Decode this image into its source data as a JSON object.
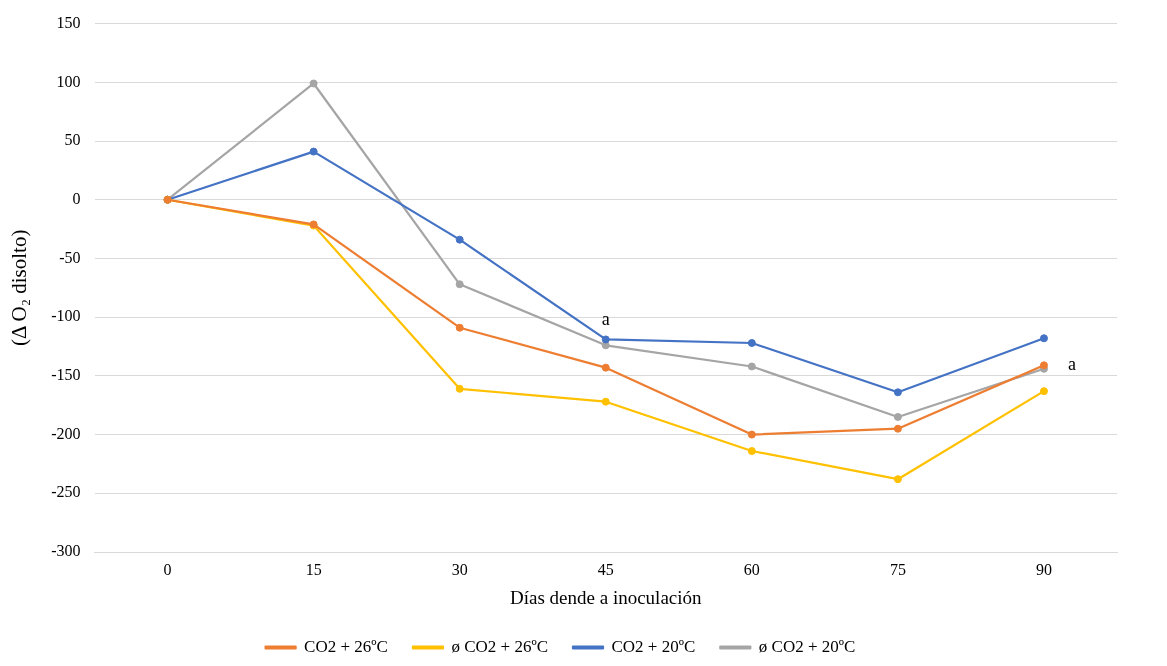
{
  "chart_data": {
    "type": "line",
    "xlabel": "Días dende a inoculación",
    "ylabel": "(Δ O₂ disolto)",
    "categories": [
      "0",
      "15",
      "30",
      "45",
      "60",
      "75",
      "90"
    ],
    "series": [
      {
        "name": "CO2 + 26ºC",
        "color": "#ed7d31",
        "values": [
          0,
          -21,
          -109,
          -143,
          -200,
          -195,
          -141
        ]
      },
      {
        "name": "ø CO2 + 26ºC",
        "color": "#ffc000",
        "values": [
          0,
          -22,
          -161,
          -172,
          -214,
          -238,
          -163
        ]
      },
      {
        "name": "CO2 + 20ºC",
        "color": "#4472c4",
        "values": [
          0,
          41,
          -34,
          -119,
          -122,
          -164,
          -118
        ]
      },
      {
        "name": "ø CO2 + 20ºC",
        "color": "#a5a5a5",
        "values": [
          0,
          99,
          -72,
          -124,
          -142,
          -185,
          -144
        ]
      }
    ],
    "ylim": [
      -300,
      150
    ],
    "yticks": [
      -300,
      -250,
      -200,
      -150,
      -100,
      -50,
      0,
      50,
      100,
      150
    ],
    "grid": "y",
    "legend": "bottom",
    "marker": "circle",
    "line_style": "solid",
    "annotations": [
      {
        "text": "a",
        "x": "45",
        "y": -119
      },
      {
        "text": "a",
        "x": "90",
        "y": -142
      }
    ]
  }
}
